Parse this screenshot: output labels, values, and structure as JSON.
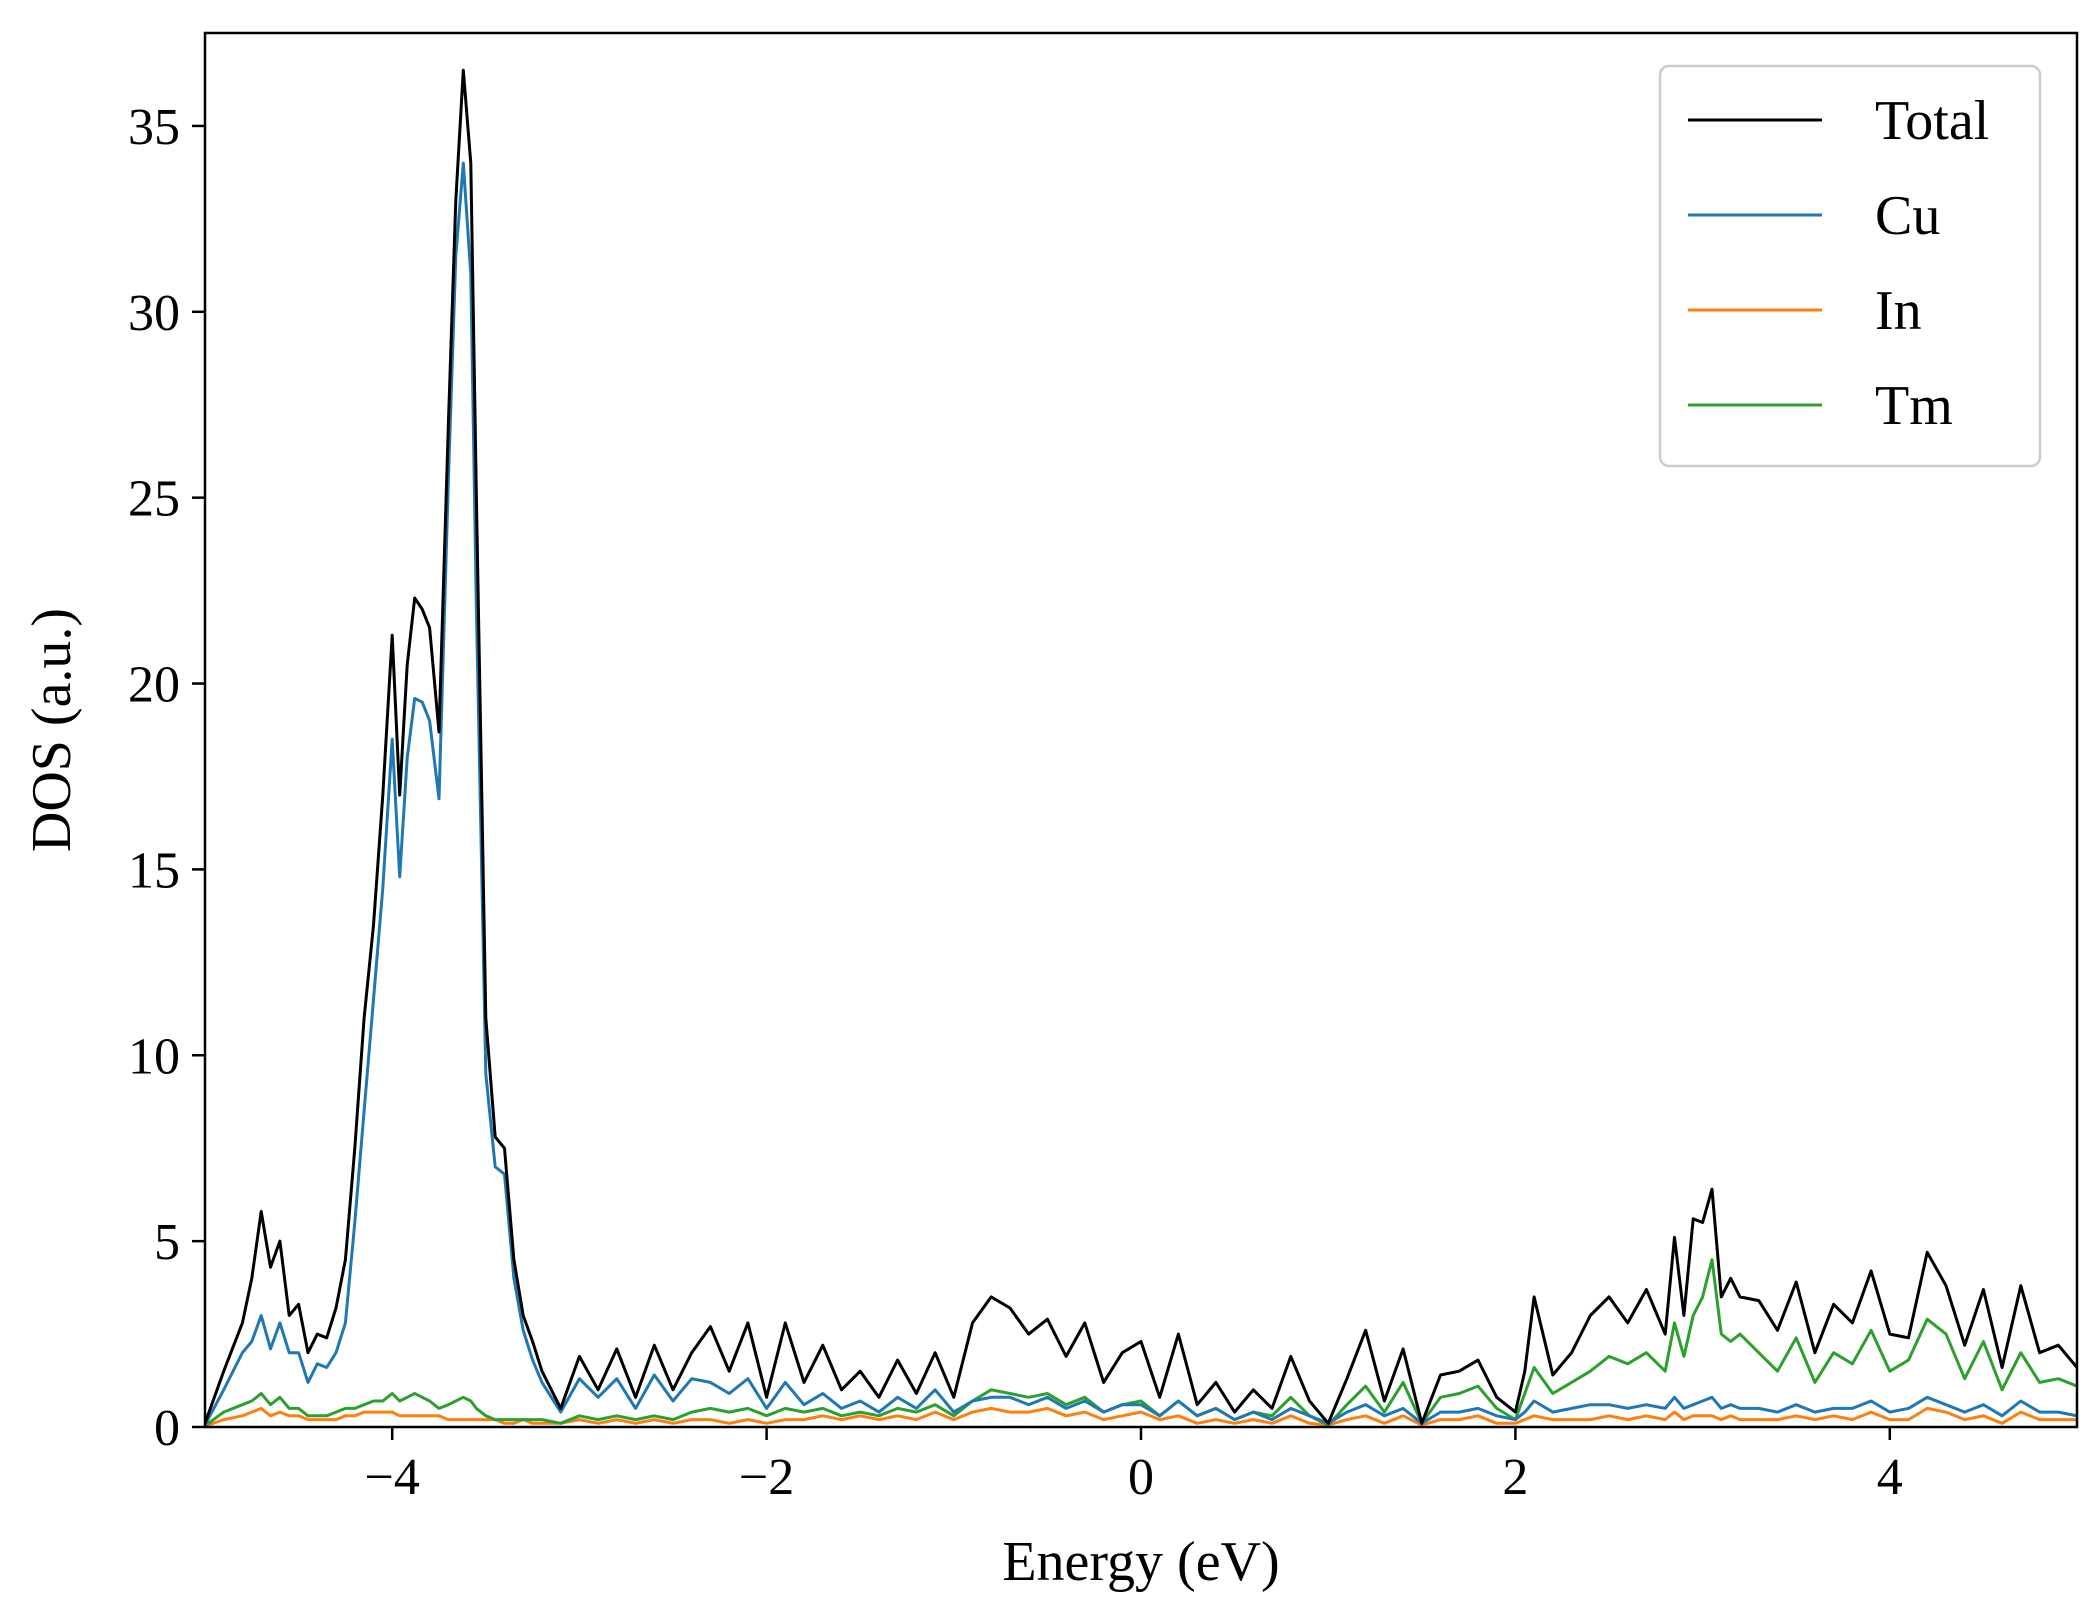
{
  "chart_data": {
    "type": "line",
    "title": "",
    "xlabel": "Energy (eV)",
    "ylabel": "DOS (a.u.)",
    "xlim": [
      -5,
      5
    ],
    "ylim": [
      0,
      37.5
    ],
    "xticks": [
      -4,
      -2,
      0,
      2,
      4
    ],
    "xtick_labels": [
      "−4",
      "−2",
      "0",
      "2",
      "4"
    ],
    "yticks": [
      0,
      5,
      10,
      15,
      20,
      25,
      30,
      35
    ],
    "ytick_labels": [
      "0",
      "5",
      "10",
      "15",
      "20",
      "25",
      "30",
      "35"
    ],
    "grid": false,
    "legend_position": "top-right",
    "x": [
      -5.0,
      -4.9,
      -4.8,
      -4.75,
      -4.7,
      -4.65,
      -4.6,
      -4.55,
      -4.5,
      -4.45,
      -4.4,
      -4.35,
      -4.3,
      -4.25,
      -4.2,
      -4.15,
      -4.1,
      -4.05,
      -4.0,
      -3.96,
      -3.92,
      -3.88,
      -3.84,
      -3.8,
      -3.75,
      -3.7,
      -3.66,
      -3.62,
      -3.58,
      -3.55,
      -3.5,
      -3.45,
      -3.4,
      -3.35,
      -3.3,
      -3.25,
      -3.2,
      -3.1,
      -3.0,
      -2.9,
      -2.8,
      -2.7,
      -2.6,
      -2.5,
      -2.4,
      -2.3,
      -2.2,
      -2.1,
      -2.0,
      -1.9,
      -1.8,
      -1.7,
      -1.6,
      -1.5,
      -1.4,
      -1.3,
      -1.2,
      -1.1,
      -1.0,
      -0.9,
      -0.8,
      -0.7,
      -0.6,
      -0.5,
      -0.4,
      -0.3,
      -0.2,
      -0.1,
      0.0,
      0.1,
      0.2,
      0.3,
      0.4,
      0.5,
      0.6,
      0.7,
      0.8,
      0.9,
      1.0,
      1.1,
      1.2,
      1.3,
      1.4,
      1.5,
      1.6,
      1.7,
      1.8,
      1.9,
      2.0,
      2.05,
      2.1,
      2.2,
      2.3,
      2.4,
      2.5,
      2.6,
      2.7,
      2.8,
      2.85,
      2.9,
      2.95,
      3.0,
      3.05,
      3.1,
      3.15,
      3.2,
      3.3,
      3.4,
      3.5,
      3.6,
      3.7,
      3.8,
      3.9,
      4.0,
      4.1,
      4.2,
      4.3,
      4.4,
      4.5,
      4.6,
      4.7,
      4.8,
      4.9,
      5.0
    ],
    "series": [
      {
        "name": "Total",
        "color": "#000000",
        "values": [
          0.1,
          1.5,
          2.8,
          4.0,
          5.8,
          4.3,
          5.0,
          3.0,
          3.3,
          2.0,
          2.5,
          2.4,
          3.2,
          4.5,
          7.5,
          11.0,
          13.5,
          17.0,
          21.3,
          17.0,
          20.5,
          22.3,
          22.0,
          21.5,
          18.7,
          27.0,
          33.0,
          36.5,
          34.0,
          25.0,
          11.0,
          7.8,
          7.5,
          4.5,
          3.0,
          2.3,
          1.5,
          0.5,
          1.9,
          1.0,
          2.1,
          0.8,
          2.2,
          1.0,
          2.0,
          2.7,
          1.5,
          2.8,
          0.8,
          2.8,
          1.2,
          2.2,
          1.0,
          1.5,
          0.8,
          1.8,
          0.9,
          2.0,
          0.8,
          2.8,
          3.5,
          3.2,
          2.5,
          2.9,
          1.9,
          2.8,
          1.2,
          2.0,
          2.3,
          0.8,
          2.5,
          0.6,
          1.2,
          0.4,
          1.0,
          0.5,
          1.9,
          0.7,
          0.1,
          1.3,
          2.6,
          0.7,
          2.1,
          0.1,
          1.4,
          1.5,
          1.8,
          0.8,
          0.4,
          1.5,
          3.5,
          1.4,
          2.0,
          3.0,
          3.5,
          2.8,
          3.7,
          2.5,
          5.1,
          3.0,
          5.6,
          5.5,
          6.4,
          3.5,
          4.0,
          3.5,
          3.4,
          2.6,
          3.9,
          2.0,
          3.3,
          2.8,
          4.2,
          2.5,
          2.4,
          4.7,
          3.8,
          2.2,
          3.7,
          1.6,
          3.8,
          2.0,
          2.2,
          1.6
        ]
      },
      {
        "name": "Cu",
        "color": "#1f77b4",
        "values": [
          0.05,
          1.0,
          2.0,
          2.3,
          3.0,
          2.1,
          2.8,
          2.0,
          2.0,
          1.2,
          1.7,
          1.6,
          2.0,
          2.8,
          5.5,
          8.5,
          11.5,
          14.5,
          18.5,
          14.8,
          18.0,
          19.6,
          19.5,
          19.0,
          16.9,
          25.5,
          31.5,
          34.0,
          31.0,
          22.0,
          9.5,
          7.0,
          6.8,
          4.0,
          2.6,
          1.8,
          1.2,
          0.4,
          1.3,
          0.8,
          1.3,
          0.5,
          1.4,
          0.7,
          1.3,
          1.2,
          0.9,
          1.3,
          0.5,
          1.2,
          0.6,
          0.9,
          0.5,
          0.7,
          0.4,
          0.8,
          0.5,
          1.0,
          0.4,
          0.7,
          0.8,
          0.8,
          0.6,
          0.8,
          0.5,
          0.7,
          0.4,
          0.6,
          0.6,
          0.3,
          0.7,
          0.3,
          0.5,
          0.2,
          0.4,
          0.2,
          0.5,
          0.3,
          0.1,
          0.4,
          0.6,
          0.3,
          0.5,
          0.1,
          0.4,
          0.4,
          0.5,
          0.3,
          0.2,
          0.4,
          0.7,
          0.4,
          0.5,
          0.6,
          0.6,
          0.5,
          0.6,
          0.5,
          0.8,
          0.5,
          0.6,
          0.7,
          0.8,
          0.5,
          0.6,
          0.5,
          0.5,
          0.4,
          0.6,
          0.4,
          0.5,
          0.5,
          0.7,
          0.4,
          0.5,
          0.8,
          0.6,
          0.4,
          0.6,
          0.3,
          0.7,
          0.4,
          0.4,
          0.3
        ]
      },
      {
        "name": "In",
        "color": "#ff7f0e",
        "values": [
          0.02,
          0.2,
          0.3,
          0.4,
          0.5,
          0.3,
          0.4,
          0.3,
          0.3,
          0.2,
          0.2,
          0.2,
          0.2,
          0.3,
          0.3,
          0.4,
          0.4,
          0.4,
          0.4,
          0.3,
          0.3,
          0.3,
          0.3,
          0.3,
          0.3,
          0.2,
          0.2,
          0.2,
          0.2,
          0.2,
          0.2,
          0.2,
          0.1,
          0.1,
          0.2,
          0.1,
          0.1,
          0.1,
          0.2,
          0.1,
          0.2,
          0.1,
          0.2,
          0.1,
          0.2,
          0.2,
          0.1,
          0.2,
          0.1,
          0.2,
          0.2,
          0.3,
          0.2,
          0.3,
          0.2,
          0.3,
          0.2,
          0.4,
          0.2,
          0.4,
          0.5,
          0.4,
          0.4,
          0.5,
          0.3,
          0.4,
          0.2,
          0.3,
          0.4,
          0.2,
          0.3,
          0.1,
          0.2,
          0.1,
          0.2,
          0.1,
          0.3,
          0.1,
          0.05,
          0.2,
          0.3,
          0.1,
          0.3,
          0.05,
          0.2,
          0.2,
          0.3,
          0.1,
          0.1,
          0.2,
          0.3,
          0.2,
          0.2,
          0.2,
          0.3,
          0.2,
          0.3,
          0.2,
          0.4,
          0.2,
          0.3,
          0.3,
          0.3,
          0.2,
          0.3,
          0.2,
          0.2,
          0.2,
          0.3,
          0.2,
          0.3,
          0.2,
          0.4,
          0.2,
          0.2,
          0.5,
          0.4,
          0.2,
          0.3,
          0.1,
          0.4,
          0.2,
          0.2,
          0.2
        ]
      },
      {
        "name": "Tm",
        "color": "#2ca02c",
        "values": [
          0.03,
          0.4,
          0.6,
          0.7,
          0.9,
          0.6,
          0.8,
          0.5,
          0.5,
          0.3,
          0.3,
          0.3,
          0.4,
          0.5,
          0.5,
          0.6,
          0.7,
          0.7,
          0.9,
          0.7,
          0.8,
          0.9,
          0.8,
          0.7,
          0.5,
          0.6,
          0.7,
          0.8,
          0.7,
          0.5,
          0.3,
          0.2,
          0.2,
          0.2,
          0.2,
          0.2,
          0.2,
          0.1,
          0.3,
          0.2,
          0.3,
          0.2,
          0.3,
          0.2,
          0.4,
          0.5,
          0.4,
          0.5,
          0.3,
          0.5,
          0.4,
          0.5,
          0.3,
          0.4,
          0.3,
          0.5,
          0.4,
          0.6,
          0.3,
          0.7,
          1.0,
          0.9,
          0.8,
          0.9,
          0.6,
          0.8,
          0.4,
          0.6,
          0.7,
          0.3,
          0.7,
          0.3,
          0.5,
          0.2,
          0.4,
          0.3,
          0.8,
          0.3,
          0.05,
          0.6,
          1.1,
          0.4,
          1.2,
          0.1,
          0.8,
          0.9,
          1.1,
          0.5,
          0.2,
          0.9,
          1.6,
          0.9,
          1.2,
          1.5,
          1.9,
          1.7,
          2.0,
          1.5,
          2.8,
          1.9,
          3.0,
          3.5,
          4.5,
          2.5,
          2.3,
          2.5,
          2.0,
          1.5,
          2.4,
          1.2,
          2.0,
          1.7,
          2.6,
          1.5,
          1.8,
          2.9,
          2.5,
          1.3,
          2.3,
          1.0,
          2.0,
          1.2,
          1.3,
          1.1
        ]
      }
    ]
  }
}
